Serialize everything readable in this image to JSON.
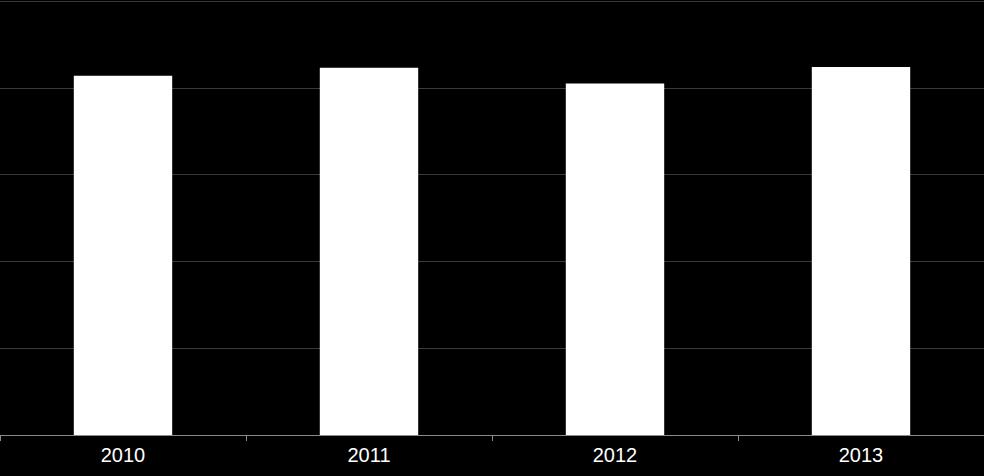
{
  "chart_data": {
    "type": "bar",
    "categories": [
      "2010",
      "2011",
      "2012",
      "2013"
    ],
    "values": [
      4.14,
      4.23,
      4.05,
      4.24
    ],
    "color": "#ffffff",
    "ylim": [
      0,
      5
    ],
    "yticks": [
      0,
      1,
      2,
      3,
      4,
      5
    ],
    "grid": true,
    "tick_labels": "x"
  }
}
